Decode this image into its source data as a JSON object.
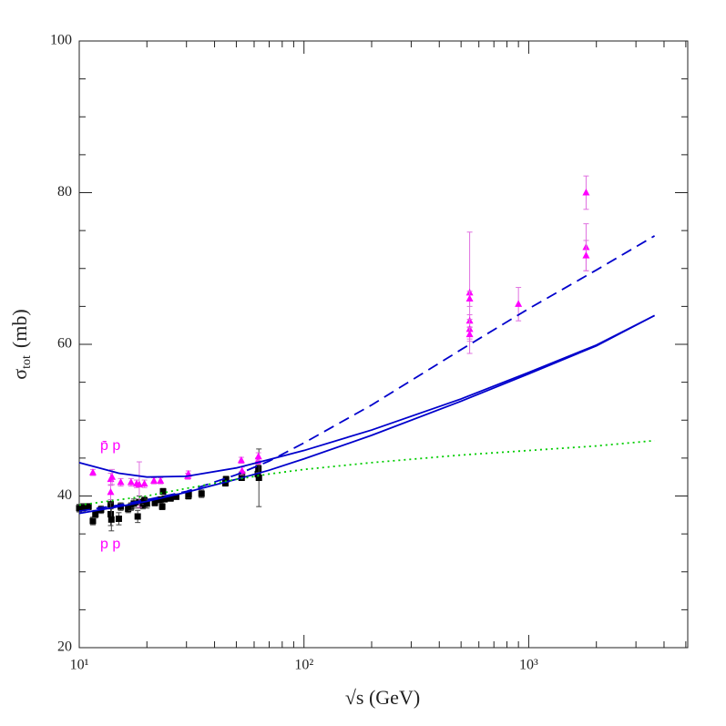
{
  "chart_data": {
    "type": "scatter",
    "xlabel": "√s (GeV)",
    "ylabel": {
      "symbol": "σ",
      "subscript": "tot",
      "unit": "(mb)"
    },
    "xscale": "log",
    "xlim": [
      10,
      5100
    ],
    "ylim": [
      20,
      100
    ],
    "xticks": [
      {
        "value": 10,
        "label": "10¹"
      },
      {
        "value": 100,
        "label": "10²"
      },
      {
        "value": 1000,
        "label": "10³"
      }
    ],
    "xminorticks": [
      20,
      30,
      40,
      50,
      60,
      70,
      80,
      90,
      200,
      300,
      400,
      500,
      600,
      700,
      800,
      900,
      2000,
      3000,
      4000,
      5000
    ],
    "yticks": [
      20,
      40,
      60,
      80,
      100
    ],
    "yminorticks": [
      25,
      30,
      35,
      45,
      50,
      55,
      65,
      70,
      75,
      85,
      90,
      95
    ],
    "series": [
      {
        "name": "p p",
        "color": "#000000",
        "marker": "square",
        "errcolor": "#444444",
        "x": [
          10.0,
          10.4,
          11.0,
          11.5,
          11.8,
          12.5,
          13.8,
          13.8,
          13.9,
          15.0,
          15.3,
          16.5,
          17.0,
          17.5,
          18.2,
          18.5,
          19.2,
          19.5,
          20.0,
          21.7,
          23.0,
          23.4,
          23.6,
          24.0,
          25.5,
          27.0,
          30.6,
          30.7,
          35.0,
          44.7,
          45.0,
          52.8,
          53.0,
          62.3,
          62.7,
          63.0
        ],
        "values": [
          38.4,
          38.5,
          38.6,
          36.7,
          37.6,
          38.2,
          38.9,
          37.6,
          36.9,
          37.0,
          38.6,
          38.3,
          38.6,
          39.0,
          37.3,
          39.2,
          38.8,
          39.4,
          39.0,
          39.1,
          39.5,
          38.6,
          40.6,
          39.6,
          39.7,
          39.9,
          40.0,
          40.2,
          40.3,
          41.7,
          42.2,
          42.4,
          42.8,
          42.9,
          43.6,
          42.4
        ],
        "errors": [
          0.5,
          0.5,
          0.4,
          0.5,
          0.5,
          0.5,
          0.6,
          1.5,
          1.5,
          0.8,
          0.5,
          0.5,
          0.5,
          0.6,
          0.8,
          0.8,
          0.5,
          0.5,
          0.6,
          0.4,
          0.4,
          0.4,
          0.4,
          0.4,
          0.4,
          0.3,
          0.4,
          0.4,
          0.5,
          0.4,
          0.4,
          0.3,
          0.3,
          0.4,
          0.5,
          3.8
        ]
      },
      {
        "name": "p̄ p",
        "color": "#ff00ff",
        "marker": "triangle",
        "errcolor": "#e070e0",
        "x": [
          11.5,
          13.8,
          13.8,
          14.0,
          15.3,
          17.0,
          18.0,
          18.5,
          19.5,
          21.5,
          23.0,
          30.4,
          30.6,
          52.6,
          53.0,
          62.3,
          62.7,
          546,
          546,
          546,
          546,
          546,
          900,
          1800,
          1800,
          1800
        ],
        "values": [
          43.1,
          42.2,
          40.5,
          42.5,
          41.8,
          41.8,
          41.6,
          41.5,
          41.6,
          42.0,
          42.0,
          42.6,
          42.9,
          44.7,
          43.3,
          44.6,
          45.2,
          66.8,
          66.0,
          63.1,
          62.0,
          61.3,
          65.3,
          80.0,
          72.8,
          71.7
        ],
        "errors": [
          0.4,
          0.8,
          1.0,
          1.0,
          0.5,
          0.5,
          0.5,
          3.0,
          0.5,
          0.4,
          0.4,
          0.4,
          0.4,
          0.4,
          0.5,
          0.4,
          0.5,
          8.0,
          1.0,
          0.8,
          1.3,
          0.9,
          2.2,
          2.2,
          3.1,
          2.0
        ]
      },
      {
        "color": "#0000cc",
        "line": "solid",
        "x": [
          10,
          15,
          20,
          30,
          50,
          70,
          100,
          200,
          500,
          1000,
          2000,
          3630
        ],
        "values": [
          44.4,
          43.0,
          42.5,
          42.6,
          43.7,
          44.8,
          46.0,
          48.7,
          52.8,
          56.3,
          59.9,
          63.8
        ]
      },
      {
        "color": "#0000cc",
        "line": "solid",
        "x": [
          10,
          15,
          20,
          30,
          50,
          70,
          100,
          200,
          500,
          1000,
          2000,
          3630
        ],
        "values": [
          37.7,
          38.6,
          39.3,
          40.5,
          42.2,
          43.4,
          44.9,
          48.0,
          52.5,
          56.1,
          59.8,
          63.8
        ]
      },
      {
        "color": "#0000cc",
        "line": "dashed",
        "x": [
          10,
          15,
          20,
          30,
          50,
          70,
          100,
          200,
          500,
          1000,
          2000,
          3630
        ],
        "values": [
          38.0,
          38.8,
          39.5,
          40.6,
          42.8,
          44.6,
          47.0,
          52.0,
          59.3,
          64.7,
          69.8,
          74.3
        ]
      },
      {
        "color": "#00cc00",
        "line": "dotted",
        "x": [
          10,
          20,
          30,
          50,
          70,
          100,
          200,
          500,
          1000,
          2000,
          3630
        ],
        "values": [
          38.8,
          40.0,
          41.0,
          42.2,
          42.9,
          43.5,
          44.4,
          45.4,
          46.0,
          46.6,
          47.3
        ]
      }
    ]
  }
}
